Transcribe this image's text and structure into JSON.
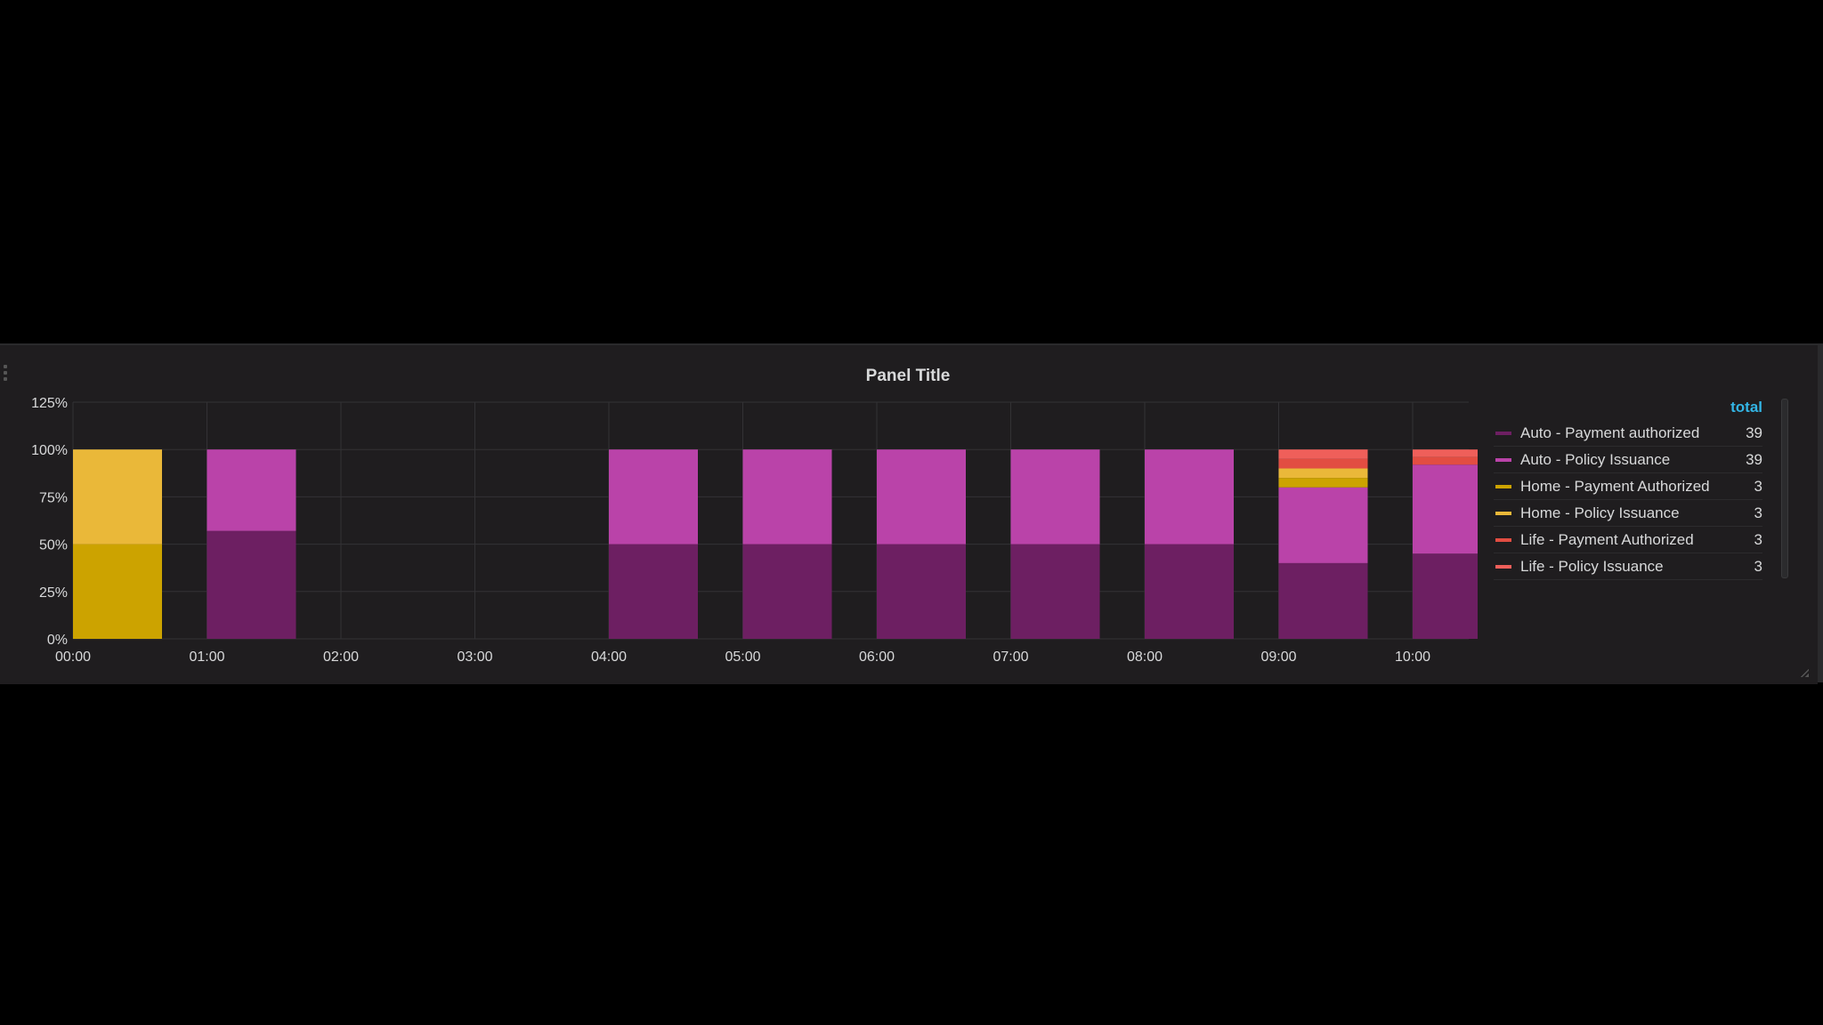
{
  "panel": {
    "title": "Panel Title"
  },
  "legend": {
    "header": "total",
    "items": [
      {
        "label": "Auto - Payment authorized",
        "value": "39",
        "color": "#6d1f62"
      },
      {
        "label": "Auto - Policy Issuance",
        "value": "39",
        "color": "#ba43a9"
      },
      {
        "label": "Home - Payment Authorized",
        "value": "3",
        "color": "#cca300"
      },
      {
        "label": "Home - Policy Issuance",
        "value": "3",
        "color": "#eab839"
      },
      {
        "label": "Life - Payment Authorized",
        "value": "3",
        "color": "#e24d42"
      },
      {
        "label": "Life - Policy Issuance",
        "value": "3",
        "color": "#ef5f5a"
      }
    ]
  },
  "chart_data": {
    "type": "bar",
    "stacked": true,
    "percentage": true,
    "title": "Panel Title",
    "categories": [
      "00:00",
      "01:00",
      "02:00",
      "03:00",
      "04:00",
      "05:00",
      "06:00",
      "07:00",
      "08:00",
      "09:00",
      "10:00"
    ],
    "ylim": [
      0,
      125
    ],
    "yticks": [
      "0%",
      "25%",
      "50%",
      "75%",
      "100%",
      "125%"
    ],
    "grid": true,
    "legend_position": "right",
    "series": [
      {
        "name": "Auto - Payment authorized",
        "color": "#6d1f62",
        "values": [
          0,
          57,
          0,
          0,
          50,
          50,
          50,
          50,
          50,
          40,
          45
        ]
      },
      {
        "name": "Auto - Policy Issuance",
        "color": "#ba43a9",
        "values": [
          0,
          43,
          0,
          0,
          50,
          50,
          50,
          50,
          50,
          40,
          47
        ]
      },
      {
        "name": "Home - Payment Authorized",
        "color": "#cca300",
        "values": [
          50,
          0,
          0,
          0,
          0,
          0,
          0,
          0,
          0,
          5,
          0
        ]
      },
      {
        "name": "Home - Policy Issuance",
        "color": "#eab839",
        "values": [
          50,
          0,
          0,
          0,
          0,
          0,
          0,
          0,
          0,
          5,
          0
        ]
      },
      {
        "name": "Life - Payment Authorized",
        "color": "#e24d42",
        "values": [
          0,
          0,
          0,
          0,
          0,
          0,
          0,
          0,
          0,
          5,
          4
        ]
      },
      {
        "name": "Life - Policy Issuance",
        "color": "#ef5f5a",
        "values": [
          0,
          0,
          0,
          0,
          0,
          0,
          0,
          0,
          0,
          5,
          4
        ]
      }
    ]
  }
}
